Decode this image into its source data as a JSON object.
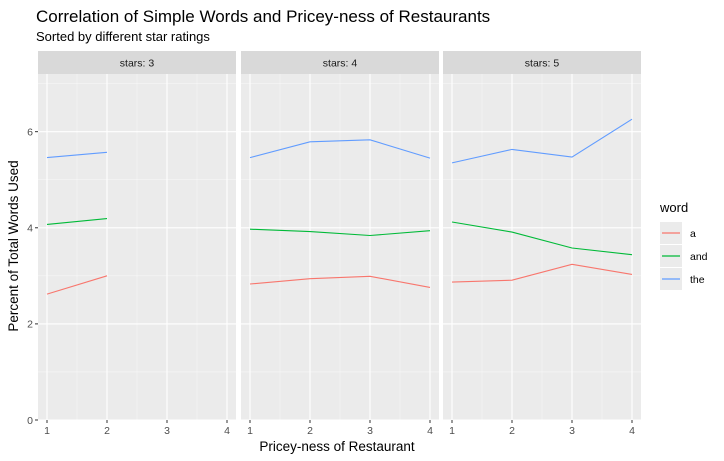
{
  "chart_data": {
    "type": "line",
    "title": "Correlation of Simple Words and Pricey-ness of Restaurants",
    "subtitle": "Sorted by different star ratings",
    "xlabel": "Pricey-ness of Restaurant",
    "ylabel": "Percent of Total Words Used",
    "xlim": [
      1,
      4
    ],
    "ylim": [
      0,
      7.2
    ],
    "x_ticks": [
      1,
      2,
      3,
      4
    ],
    "y_ticks": [
      0,
      2,
      4,
      6
    ],
    "grid": true,
    "legend": {
      "title": "word",
      "placement": "right",
      "entries": [
        {
          "label": "a",
          "color": "#F8766D"
        },
        {
          "label": "and",
          "color": "#00BA38"
        },
        {
          "label": "the",
          "color": "#619CFF"
        }
      ]
    },
    "facets": [
      {
        "label": "stars: 3",
        "series": [
          {
            "name": "a",
            "x": [
              1,
              2
            ],
            "y": [
              2.62,
              3.0
            ]
          },
          {
            "name": "and",
            "x": [
              1,
              2
            ],
            "y": [
              4.07,
              4.19
            ]
          },
          {
            "name": "the",
            "x": [
              1,
              2
            ],
            "y": [
              5.46,
              5.57
            ]
          }
        ]
      },
      {
        "label": "stars: 4",
        "series": [
          {
            "name": "a",
            "x": [
              1,
              2,
              3,
              4
            ],
            "y": [
              2.83,
              2.94,
              2.99,
              2.76
            ]
          },
          {
            "name": "and",
            "x": [
              1,
              2,
              3,
              4
            ],
            "y": [
              3.97,
              3.92,
              3.84,
              3.94
            ]
          },
          {
            "name": "the",
            "x": [
              1,
              2,
              3,
              4
            ],
            "y": [
              5.46,
              5.79,
              5.83,
              5.45
            ]
          }
        ]
      },
      {
        "label": "stars: 5",
        "series": [
          {
            "name": "a",
            "x": [
              1,
              2,
              3,
              4
            ],
            "y": [
              2.87,
              2.91,
              3.24,
              3.03
            ]
          },
          {
            "name": "and",
            "x": [
              1,
              2,
              3,
              4
            ],
            "y": [
              4.12,
              3.91,
              3.58,
              3.44
            ]
          },
          {
            "name": "the",
            "x": [
              1,
              2,
              3,
              4
            ],
            "y": [
              5.35,
              5.63,
              5.47,
              6.26
            ]
          }
        ]
      }
    ]
  }
}
